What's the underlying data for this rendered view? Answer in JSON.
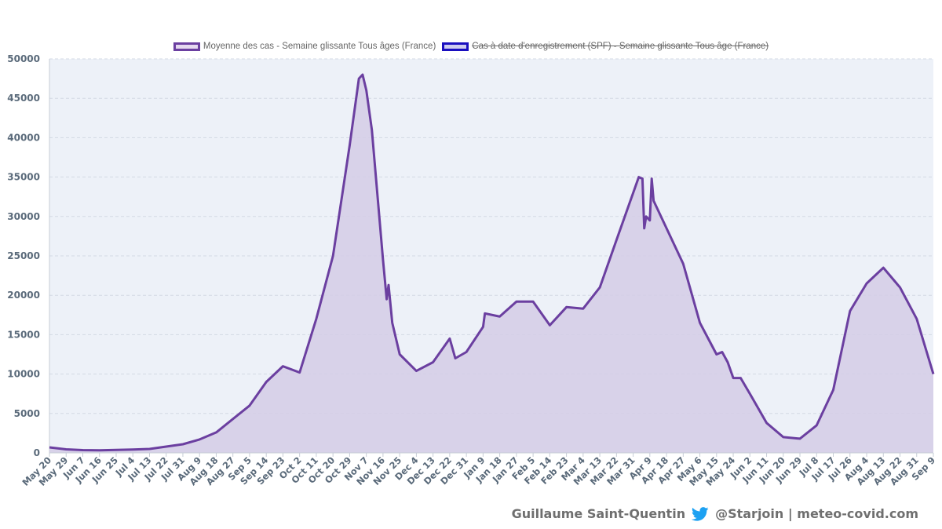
{
  "legend": {
    "series1_label": "Moyenne des cas - Semaine glissante Tous âges (France)",
    "series2_label": "Cas à date d'enregistrement (SPF) - Semaine glissante Tous âge (France)"
  },
  "footer": {
    "author": "Guillaume Saint-Quentin",
    "handle": "@Starjoin | meteo-covid.com"
  },
  "colors": {
    "line": "#6b3fa0",
    "fill": "#d4cde6",
    "plot_bg": "#edf1f8",
    "grid": "#d3d9e4",
    "series2_border": "#1a0fbf",
    "series2_fill": "#cfcdef",
    "series1_fill": "#e6d9f0",
    "twitter": "#1da1f2"
  },
  "chart_data": {
    "type": "area",
    "ylim": [
      0,
      50000
    ],
    "yticks": [
      0,
      5000,
      10000,
      15000,
      20000,
      25000,
      30000,
      35000,
      40000,
      45000,
      50000
    ],
    "grid": true,
    "legend_position": "top-center",
    "xtick_labels": [
      "May 20",
      "May 29",
      "Jun 7",
      "Jun 16",
      "Jun 25",
      "Jul 4",
      "Jul 13",
      "Jul 22",
      "Jul 31",
      "Aug 9",
      "Aug 18",
      "Aug 27",
      "Sep 5",
      "Sep 14",
      "Sep 23",
      "Oct 2",
      "Oct 11",
      "Oct 20",
      "Oct 29",
      "Nov 7",
      "Nov 16",
      "Nov 25",
      "Dec 4",
      "Dec 13",
      "Dec 22",
      "Dec 31",
      "Jan 9",
      "Jan 18",
      "Jan 27",
      "Feb 5",
      "Feb 14",
      "Feb 23",
      "Mar 4",
      "Mar 13",
      "Mar 22",
      "Mar 31",
      "Apr 9",
      "Apr 18",
      "Apr 27",
      "May 6",
      "May 15",
      "May 24",
      "Jun 2",
      "Jun 11",
      "Jun 20",
      "Jun 29",
      "Jul 8",
      "Jul 17",
      "Jul 26",
      "Aug 4",
      "Aug 13",
      "Aug 22",
      "Aug 31",
      "Sep 9"
    ],
    "series": [
      {
        "name": "Moyenne des cas - Semaine glissante Tous âges (France)",
        "hidden": false,
        "points": [
          [
            "May 20",
            700
          ],
          [
            "May 29",
            450
          ],
          [
            "Jun 7",
            350
          ],
          [
            "Jun 16",
            320
          ],
          [
            "Jun 25",
            380
          ],
          [
            "Jul 4",
            420
          ],
          [
            "Jul 13",
            500
          ],
          [
            "Jul 22",
            800
          ],
          [
            "Jul 31",
            1100
          ],
          [
            "Aug 9",
            1700
          ],
          [
            "Aug 18",
            2600
          ],
          [
            "Aug 27",
            4300
          ],
          [
            "Sep 5",
            6000
          ],
          [
            "Sep 14",
            9000
          ],
          [
            "Sep 23",
            11000
          ],
          [
            "Oct 2",
            10200
          ],
          [
            "Oct 11",
            17000
          ],
          [
            "Oct 20",
            25000
          ],
          [
            "Oct 29",
            39000
          ],
          [
            "Nov 3",
            47500
          ],
          [
            "Nov 5",
            48000
          ],
          [
            "Nov 7",
            46000
          ],
          [
            "Nov 10",
            41000
          ],
          [
            "Nov 16",
            24500
          ],
          [
            "Nov 18",
            19500
          ],
          [
            "Nov 19",
            21300
          ],
          [
            "Nov 21",
            16500
          ],
          [
            "Nov 25",
            12500
          ],
          [
            "Dec 4",
            10400
          ],
          [
            "Dec 13",
            11500
          ],
          [
            "Dec 22",
            14500
          ],
          [
            "Dec 25",
            12000
          ],
          [
            "Dec 31",
            12800
          ],
          [
            "Jan 9",
            16000
          ],
          [
            "Jan 10",
            17700
          ],
          [
            "Jan 18",
            17300
          ],
          [
            "Jan 27",
            19200
          ],
          [
            "Feb 5",
            19200
          ],
          [
            "Feb 14",
            16200
          ],
          [
            "Feb 23",
            18500
          ],
          [
            "Mar 4",
            18300
          ],
          [
            "Mar 13",
            21000
          ],
          [
            "Mar 22",
            27000
          ],
          [
            "Mar 31",
            33000
          ],
          [
            "Apr 3",
            35000
          ],
          [
            "Apr 5",
            34800
          ],
          [
            "Apr 6",
            28500
          ],
          [
            "Apr 7",
            30000
          ],
          [
            "Apr 9",
            29500
          ],
          [
            "Apr 10",
            34800
          ],
          [
            "Apr 11",
            32000
          ],
          [
            "Apr 18",
            28500
          ],
          [
            "Apr 27",
            24000
          ],
          [
            "May 6",
            16500
          ],
          [
            "May 15",
            12500
          ],
          [
            "May 18",
            12800
          ],
          [
            "May 21",
            11500
          ],
          [
            "May 24",
            9500
          ],
          [
            "May 28",
            9500
          ],
          [
            "Jun 2",
            7500
          ],
          [
            "Jun 11",
            3800
          ],
          [
            "Jun 20",
            2000
          ],
          [
            "Jun 29",
            1800
          ],
          [
            "Jul 8",
            3500
          ],
          [
            "Jul 17",
            8000
          ],
          [
            "Jul 26",
            18000
          ],
          [
            "Aug 4",
            21500
          ],
          [
            "Aug 13",
            23500
          ],
          [
            "Aug 22",
            21000
          ],
          [
            "Aug 31",
            17000
          ],
          [
            "Sep 9",
            10000
          ]
        ]
      },
      {
        "name": "Cas à date d'enregistrement (SPF) - Semaine glissante Tous âge (France)",
        "hidden": true,
        "points": []
      }
    ]
  }
}
